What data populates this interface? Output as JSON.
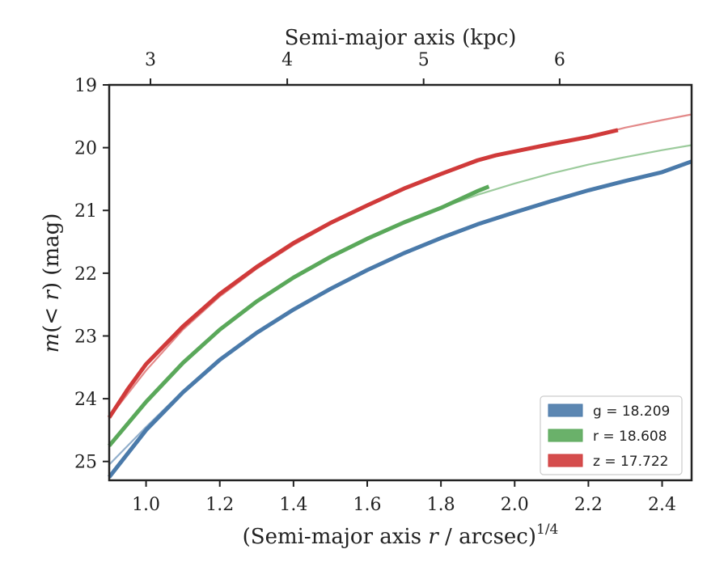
{
  "chart_data": {
    "type": "line",
    "xlabel": "(Semi-major axis r / arcsec)",
    "xlabel_superscript": "1/4",
    "ylabel": "m(< r) (mag)",
    "top_xlabel": "Semi-major axis (kpc)",
    "xlim": [
      0.9,
      2.48
    ],
    "ylim": [
      25.3,
      19.0
    ],
    "y_inverted": true,
    "x_ticks": [
      "1.0",
      "1.2",
      "1.4",
      "1.6",
      "1.8",
      "2.0",
      "2.2",
      "2.4"
    ],
    "y_ticks": [
      "19",
      "20",
      "21",
      "22",
      "23",
      "24",
      "25"
    ],
    "top_x_ticks": [
      {
        "label": "3",
        "x_arcsec_quarter": 1.012
      },
      {
        "label": "4",
        "x_arcsec_quarter": 1.383
      },
      {
        "label": "5",
        "x_arcsec_quarter": 1.753
      },
      {
        "label": "6",
        "x_arcsec_quarter": 2.122
      }
    ],
    "legend_position": "lower-right",
    "grid": false,
    "series": [
      {
        "name": "g = 18.209",
        "band": "g",
        "color": "#4a7aaa",
        "model_x": [
          0.9,
          1.0,
          1.1,
          1.2,
          1.3,
          1.4,
          1.5,
          1.6,
          1.7,
          1.8,
          1.9,
          2.0,
          2.1,
          2.2,
          2.3,
          2.4,
          2.48
        ],
        "model_y": [
          25.05,
          24.45,
          23.88,
          23.38,
          22.95,
          22.58,
          22.25,
          21.95,
          21.68,
          21.44,
          21.22,
          21.03,
          20.85,
          20.68,
          20.53,
          20.39,
          20.22
        ],
        "data_x": [
          0.9,
          1.0,
          1.1,
          1.2,
          1.3,
          1.4,
          1.5,
          1.6,
          1.7,
          1.8,
          1.9,
          2.0,
          2.1,
          2.2,
          2.3,
          2.4,
          2.48
        ],
        "data_y": [
          25.25,
          24.5,
          23.9,
          23.38,
          22.95,
          22.58,
          22.25,
          21.95,
          21.68,
          21.44,
          21.22,
          21.03,
          20.85,
          20.68,
          20.53,
          20.39,
          20.22
        ]
      },
      {
        "name": "r = 18.608",
        "band": "r",
        "color": "#5aa85a",
        "model_x": [
          0.9,
          1.0,
          1.1,
          1.2,
          1.3,
          1.4,
          1.5,
          1.6,
          1.7,
          1.8,
          1.9,
          2.0,
          2.1,
          2.2,
          2.3,
          2.4,
          2.48
        ],
        "model_y": [
          24.75,
          24.05,
          23.43,
          22.9,
          22.45,
          22.07,
          21.74,
          21.45,
          21.19,
          20.96,
          20.75,
          20.57,
          20.41,
          20.27,
          20.15,
          20.04,
          19.96
        ],
        "data_x": [
          0.9,
          1.0,
          1.1,
          1.2,
          1.3,
          1.4,
          1.5,
          1.6,
          1.7,
          1.8,
          1.9,
          1.93
        ],
        "data_y": [
          24.75,
          24.05,
          23.43,
          22.9,
          22.45,
          22.07,
          21.74,
          21.45,
          21.19,
          20.96,
          20.69,
          20.62
        ]
      },
      {
        "name": "z = 17.722",
        "band": "z",
        "color": "#d03a3a",
        "model_x": [
          0.9,
          1.0,
          1.1,
          1.2,
          1.3,
          1.4,
          1.5,
          1.6,
          1.7,
          1.8,
          1.9,
          2.0,
          2.1,
          2.2,
          2.3,
          2.4,
          2.48
        ],
        "model_y": [
          24.3,
          23.55,
          22.9,
          22.37,
          21.93,
          21.55,
          21.22,
          20.93,
          20.67,
          20.43,
          20.22,
          20.06,
          19.94,
          19.83,
          19.68,
          19.56,
          19.47
        ],
        "data_x": [
          0.9,
          0.95,
          1.0,
          1.1,
          1.2,
          1.3,
          1.4,
          1.5,
          1.6,
          1.7,
          1.8,
          1.9,
          1.95,
          2.0,
          2.1,
          2.2,
          2.28
        ],
        "data_y": [
          24.3,
          23.85,
          23.45,
          22.85,
          22.33,
          21.9,
          21.52,
          21.2,
          20.92,
          20.65,
          20.42,
          20.2,
          20.12,
          20.06,
          19.94,
          19.83,
          19.72
        ]
      }
    ]
  }
}
